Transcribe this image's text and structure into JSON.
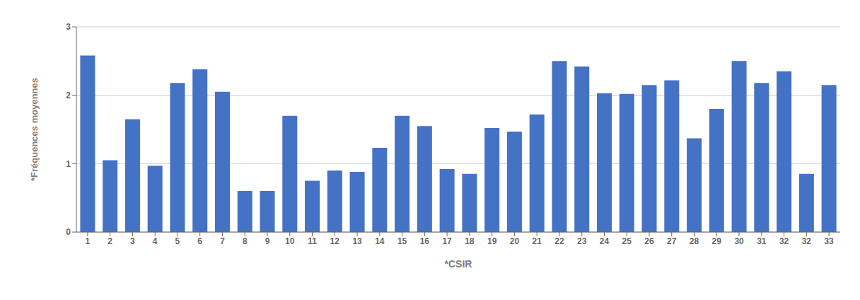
{
  "chart_data": {
    "type": "bar",
    "xlabel": "*CSIR",
    "ylabel": "*Fréquences moyennes",
    "categories": [
      "1",
      "2",
      "3",
      "4",
      "5",
      "6",
      "7",
      "8",
      "9",
      "10",
      "11",
      "12",
      "13",
      "14",
      "15",
      "16",
      "17",
      "18",
      "19",
      "20",
      "21",
      "22",
      "23",
      "24",
      "25",
      "26",
      "27",
      "28",
      "29",
      "30",
      "31",
      "32",
      "32",
      "33"
    ],
    "values": [
      2.58,
      1.05,
      1.65,
      0.97,
      2.18,
      2.38,
      2.05,
      0.6,
      0.6,
      1.7,
      0.75,
      0.9,
      0.88,
      1.23,
      1.7,
      1.55,
      0.92,
      0.85,
      1.52,
      1.47,
      1.72,
      2.5,
      2.42,
      2.03,
      2.02,
      2.15,
      2.22,
      1.37,
      1.8,
      2.5,
      2.18,
      2.35,
      0.85,
      2.15
    ],
    "color": "#4472C4",
    "ylim": [
      0,
      3
    ],
    "yticks": [
      0,
      1,
      2,
      3
    ],
    "grid": true
  }
}
